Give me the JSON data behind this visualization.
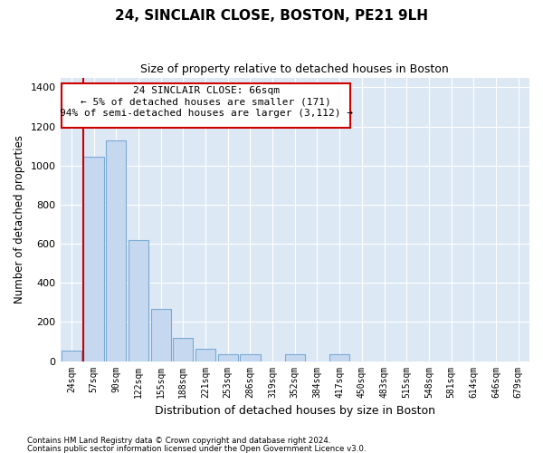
{
  "title": "24, SINCLAIR CLOSE, BOSTON, PE21 9LH",
  "subtitle": "Size of property relative to detached houses in Boston",
  "xlabel": "Distribution of detached houses by size in Boston",
  "ylabel": "Number of detached properties",
  "footnote1": "Contains HM Land Registry data © Crown copyright and database right 2024.",
  "footnote2": "Contains public sector information licensed under the Open Government Licence v3.0.",
  "annotation_line1": "24 SINCLAIR CLOSE: 66sqm",
  "annotation_line2": "← 5% of detached houses are smaller (171)",
  "annotation_line3": "94% of semi-detached houses are larger (3,112) →",
  "bar_color": "#c5d8f0",
  "bar_edge_color": "#7aaad4",
  "vline_color": "#cc0000",
  "annotation_box_edgecolor": "#cc0000",
  "background_color": "#dde8f5",
  "categories": [
    "24sqm",
    "57sqm",
    "90sqm",
    "122sqm",
    "155sqm",
    "188sqm",
    "221sqm",
    "253sqm",
    "286sqm",
    "319sqm",
    "352sqm",
    "384sqm",
    "417sqm",
    "450sqm",
    "483sqm",
    "515sqm",
    "548sqm",
    "581sqm",
    "614sqm",
    "646sqm",
    "679sqm"
  ],
  "values": [
    55,
    1045,
    1130,
    620,
    268,
    118,
    65,
    35,
    35,
    0,
    35,
    0,
    35,
    0,
    0,
    0,
    0,
    0,
    0,
    0,
    0
  ],
  "vline_x_index": 1,
  "ylim": [
    0,
    1450
  ],
  "yticks": [
    0,
    200,
    400,
    600,
    800,
    1000,
    1200,
    1400
  ]
}
